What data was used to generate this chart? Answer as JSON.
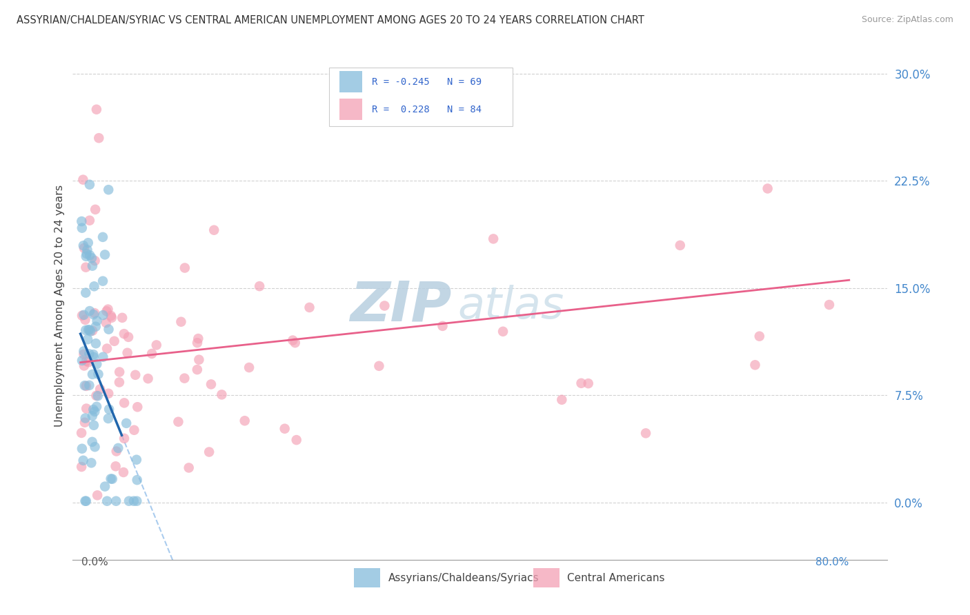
{
  "title": "ASSYRIAN/CHALDEAN/SYRIAC VS CENTRAL AMERICAN UNEMPLOYMENT AMONG AGES 20 TO 24 YEARS CORRELATION CHART",
  "source": "Source: ZipAtlas.com",
  "ylabel": "Unemployment Among Ages 20 to 24 years",
  "ytick_vals": [
    0.0,
    0.075,
    0.15,
    0.225,
    0.3
  ],
  "ytick_labels": [
    "0.0%",
    "7.5%",
    "15.0%",
    "22.5%",
    "30.0%"
  ],
  "xlim": [
    -0.008,
    0.84
  ],
  "ylim": [
    -0.04,
    0.315
  ],
  "blue_color": "#85bcdb",
  "blue_line_color": "#2166ac",
  "pink_color": "#f4a0b5",
  "pink_line_color": "#e8608a",
  "dashed_line_color": "#aaccee",
  "background_color": "#ffffff",
  "grid_color": "#cccccc",
  "legend_R1": "-0.245",
  "legend_N1": "69",
  "legend_R2": "0.228",
  "legend_N2": "84",
  "blue_intercept": 0.118,
  "blue_slope": -1.65,
  "pink_intercept": 0.098,
  "pink_slope": 0.072,
  "watermark_zip_color": "#c5d8ee",
  "watermark_atlas_color": "#b8d4ee"
}
